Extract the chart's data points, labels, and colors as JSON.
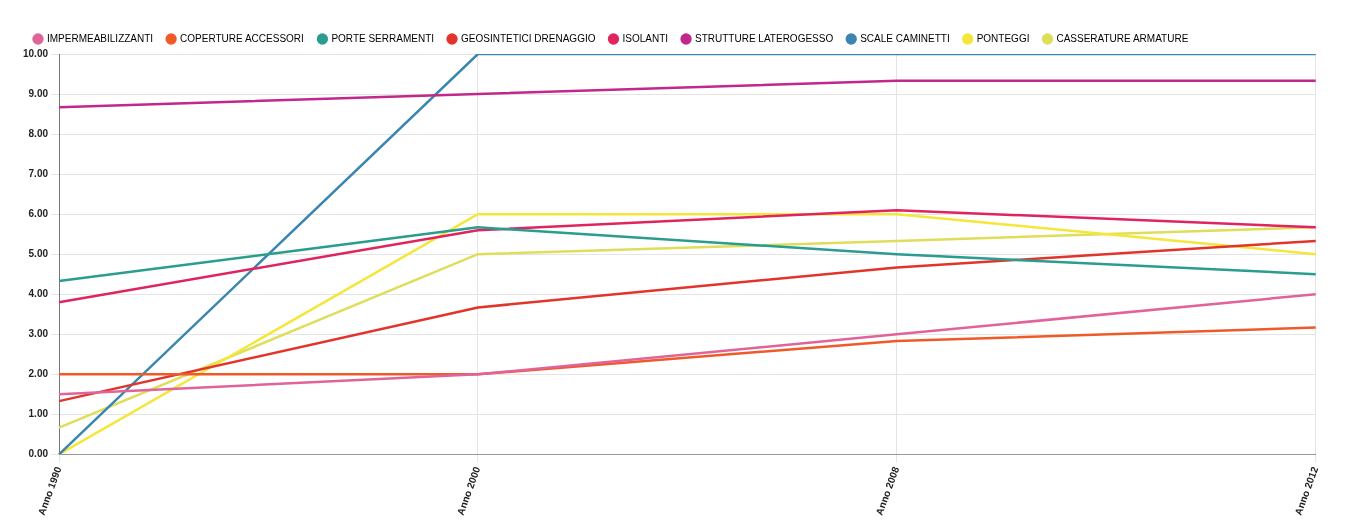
{
  "chart_data": {
    "type": "line",
    "categories": [
      "Anno 1990",
      "Anno 2000",
      "Anno 2008",
      "Anno 2012"
    ],
    "series": [
      {
        "name": "IMPERMEABILIZZANTI",
        "color": "#e0649a",
        "values": [
          1.5,
          2.0,
          3.0,
          4.0
        ]
      },
      {
        "name": "COPERTURE ACCESSORI",
        "color": "#f05a28",
        "values": [
          2.0,
          2.0,
          2.83,
          3.17
        ]
      },
      {
        "name": "PORTE SERRAMENTI",
        "color": "#2a9d8f",
        "values": [
          4.33,
          5.67,
          5.0,
          4.5
        ]
      },
      {
        "name": "GEOSINTETICI DRENAGGIO",
        "color": "#e3342b",
        "values": [
          1.33,
          3.67,
          4.67,
          5.33
        ]
      },
      {
        "name": "ISOLANTI",
        "color": "#e0245e",
        "values": [
          3.8,
          5.6,
          6.1,
          5.67
        ]
      },
      {
        "name": "STRUTTURE LATEROGESSO",
        "color": "#c0288c",
        "values": [
          8.67,
          9.0,
          9.33,
          9.33
        ]
      },
      {
        "name": "SCALE CAMINETTI",
        "color": "#3a86b0",
        "values": [
          0,
          10,
          10,
          10
        ]
      },
      {
        "name": "PONTEGGI",
        "color": "#f5e63a",
        "values": [
          0,
          6.0,
          6.0,
          5.0
        ]
      },
      {
        "name": "CASSERATURE ARMATURE",
        "color": "#dede5a",
        "values": [
          0.67,
          5.0,
          5.33,
          5.67
        ]
      }
    ],
    "ylim": [
      0,
      10
    ],
    "yticks": [
      {
        "value": 0,
        "label": "0.00"
      },
      {
        "value": 1,
        "label": "1.00"
      },
      {
        "value": 2,
        "label": "2.00"
      },
      {
        "value": 3,
        "label": "3.00"
      },
      {
        "value": 4,
        "label": "4.00"
      },
      {
        "value": 5,
        "label": "5.00"
      },
      {
        "value": 6,
        "label": "6.00"
      },
      {
        "value": 7,
        "label": "7.00"
      },
      {
        "value": 8,
        "label": "8.00"
      },
      {
        "value": 9,
        "label": "9.00"
      },
      {
        "value": 10,
        "label": "10.00"
      }
    ],
    "grid": true,
    "legend": "top left",
    "marker": "none",
    "line_style": "solid"
  }
}
